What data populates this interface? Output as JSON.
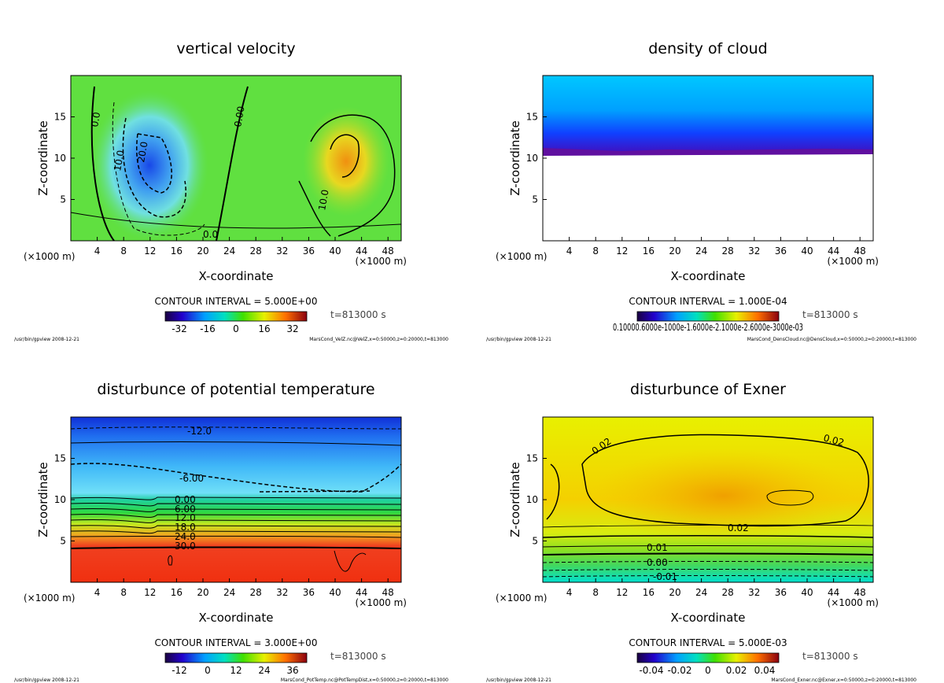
{
  "chart_data": [
    {
      "type": "heatmap",
      "variant": "contour",
      "title": "vertical velocity",
      "xlabel": "X-coordinate",
      "ylabel": "Z-coordinate",
      "xunit": "(×1000 m)",
      "xticks": [
        "4",
        "8",
        "12",
        "16",
        "20",
        "24",
        "28",
        "32",
        "36",
        "40",
        "44",
        "48"
      ],
      "yticks": [
        "5",
        "10",
        "15"
      ],
      "xlim": [
        0,
        50
      ],
      "ylim": [
        0,
        20
      ],
      "contour_interval": "CONTOUR INTERVAL = 5.000E+00",
      "time": "t=813000 s",
      "colorbar_ticks": [
        "-32",
        "-16",
        "0",
        "16",
        "32"
      ],
      "contour_labels": [
        "0.0",
        "0.00",
        "10.0",
        "20.0",
        "10.0",
        "0.0"
      ],
      "program": "/usr/bin/gpview  2008-12-21",
      "source": "MarsCond_VelZ.nc@VelZ,x=0:50000,z=0:20000,t=813000"
    },
    {
      "type": "heatmap",
      "variant": "contour",
      "title": "density of cloud",
      "xlabel": "X-coordinate",
      "ylabel": "Z-coordinate",
      "xunit": "(×1000 m)",
      "xticks": [
        "4",
        "8",
        "12",
        "16",
        "20",
        "24",
        "28",
        "32",
        "36",
        "40",
        "44",
        "48"
      ],
      "yticks": [
        "5",
        "10",
        "15"
      ],
      "xlim": [
        0,
        50
      ],
      "ylim": [
        0,
        20
      ],
      "contour_interval": "CONTOUR INTERVAL = 1.000E-04",
      "time": "t=813000 s",
      "colorbar_ticks": [
        "0.10000E-03",
        "0.60000E-03",
        "1.1000E-03",
        "1.6000E-03",
        "2.1000E-03",
        "2.6000E-03",
        "3.0000E-03"
      ],
      "colorbar_label_visible": "0.10000.6000e-1000e-1.6000e-2.1000e-2.6000e-3000e-03",
      "program": "/usr/bin/gpview  2008-12-21",
      "source": "MarsCond_DensCloud.nc@DensCloud,x=0:50000,z=0:20000,t=813000"
    },
    {
      "type": "heatmap",
      "variant": "contour",
      "title": "disturbunce of potential temperature",
      "xlabel": "X-coordinate",
      "ylabel": "Z-coordinate",
      "xunit": "(×1000 m)",
      "xticks": [
        "4",
        "8",
        "12",
        "16",
        "20",
        "24",
        "28",
        "32",
        "36",
        "40",
        "44",
        "48"
      ],
      "yticks": [
        "5",
        "10",
        "15"
      ],
      "xlim": [
        0,
        50
      ],
      "ylim": [
        0,
        20
      ],
      "contour_interval": "CONTOUR INTERVAL = 3.000E+00",
      "time": "t=813000 s",
      "colorbar_ticks": [
        "-12",
        "0",
        "12",
        "24",
        "36"
      ],
      "contour_labels": [
        "-12.0",
        "-6.00",
        "0.00",
        "6.00",
        "12.0",
        "18.0",
        "24.0",
        "30.0"
      ],
      "program": "/usr/bin/gpview  2008-12-21",
      "source": "MarsCond_PotTemp.nc@PotTempDist,x=0:50000,z=0:20000,t=813000"
    },
    {
      "type": "heatmap",
      "variant": "contour",
      "title": "disturbunce of Exner",
      "xlabel": "X-coordinate",
      "ylabel": "Z-coordinate",
      "xunit": "(×1000 m)",
      "xticks": [
        "4",
        "8",
        "12",
        "16",
        "20",
        "24",
        "28",
        "32",
        "36",
        "40",
        "44",
        "48"
      ],
      "yticks": [
        "5",
        "10",
        "15"
      ],
      "xlim": [
        0,
        50
      ],
      "ylim": [
        0,
        20
      ],
      "contour_interval": "CONTOUR INTERVAL = 5.000E-03",
      "time": "t=813000 s",
      "colorbar_ticks": [
        "-0.04",
        "-0.02",
        "0",
        "0.02",
        "0.04"
      ],
      "contour_labels": [
        "0.02",
        "0.02",
        "0.02",
        "0.01",
        "0.00",
        "-0.01"
      ],
      "program": "/usr/bin/gpview  2008-12-21",
      "source": "MarsCond_Exner.nc@Exner,x=0:50000,z=0:20000,t=813000"
    }
  ]
}
